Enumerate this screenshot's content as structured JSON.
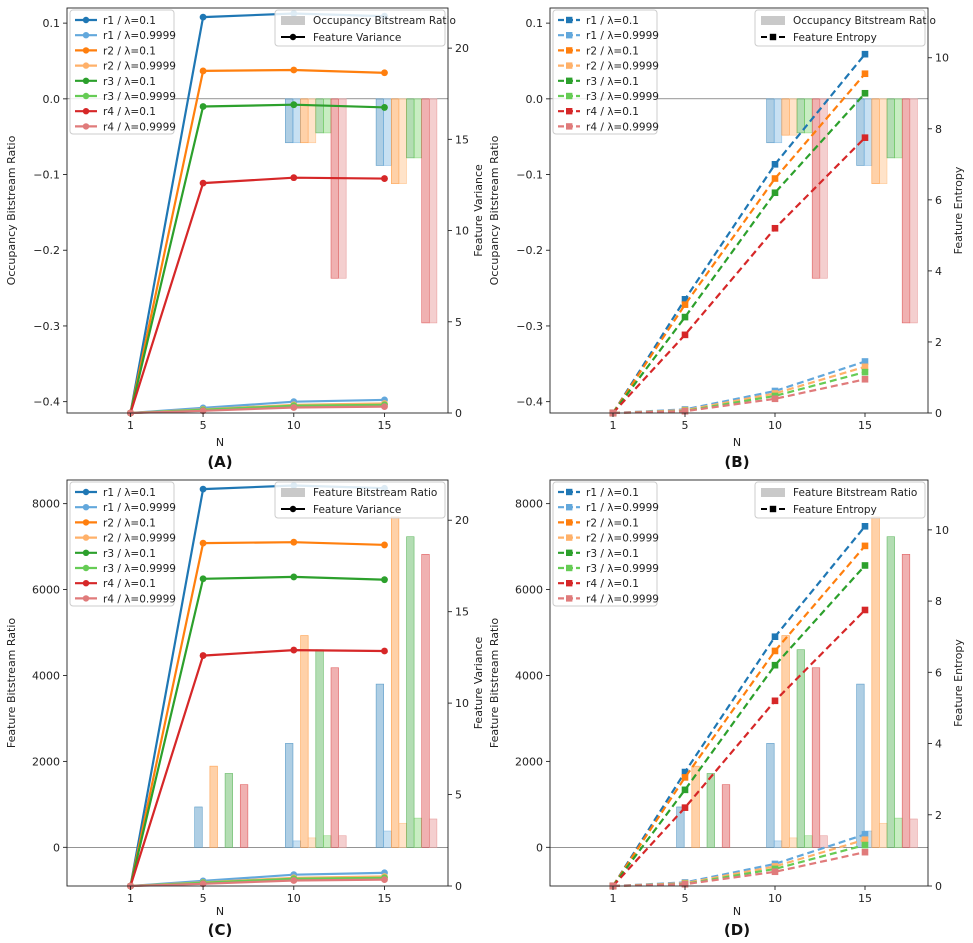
{
  "figure": {
    "n_label": "N",
    "legend_entries": [
      "r1 / λ=0.1",
      "r1 / λ=0.9999",
      "r2 / λ=0.1",
      "r2 / λ=0.9999",
      "r3 / λ=0.1",
      "r3 / λ=0.9999",
      "r4 / λ=0.1",
      "r4 / λ=0.9999"
    ],
    "colors": {
      "r1_0.1": "#1f77b4",
      "r1_0.9999": "#63a8dc",
      "r2_0.1": "#ff7f0e",
      "r2_0.9999": "#ffb16a",
      "r3_0.1": "#2ca02c",
      "r3_0.9999": "#66cc55",
      "r4_0.1": "#d62728",
      "r4_0.9999": "#e07b7b"
    }
  },
  "chart_data": [
    {
      "type": "bar+line",
      "panel_label": "(A)",
      "xlabel": "N",
      "ylabel": "Occupancy Bitstream Ratio",
      "y2label": "Feature Variance",
      "x_ticks": [
        "1",
        "5",
        "10",
        "15"
      ],
      "ylim": [
        -0.415,
        0.12
      ],
      "y_ticks": [
        "0.1",
        "0.0",
        "−0.1",
        "−0.2",
        "−0.3",
        "−0.4"
      ],
      "y2lim": [
        0,
        22.2
      ],
      "y2_ticks": [
        "0",
        "5",
        "10",
        "15",
        "20"
      ],
      "line_style": "solid",
      "bar_legend": "Occupancy Bitstream Ratio",
      "line_legend": "Feature Variance",
      "bars": [
        {
          "N": 10,
          "values": [
            -0.058,
            -0.058,
            -0.058,
            -0.058,
            -0.045,
            -0.045,
            -0.237,
            -0.237
          ]
        },
        {
          "N": 15,
          "values": [
            -0.088,
            -0.088,
            -0.112,
            -0.112,
            -0.078,
            -0.078,
            -0.296,
            -0.296
          ]
        }
      ],
      "series": [
        {
          "name": "r1 / λ=0.1",
          "x": [
            1,
            5,
            10,
            15
          ],
          "values": [
            0.0,
            21.7,
            21.9,
            21.75
          ]
        },
        {
          "name": "r1 / λ=0.9999",
          "x": [
            1,
            5,
            10,
            15
          ],
          "values": [
            0.0,
            0.28,
            0.62,
            0.72
          ]
        },
        {
          "name": "r2 / λ=0.1",
          "x": [
            1,
            5,
            10,
            15
          ],
          "values": [
            0.0,
            18.75,
            18.8,
            18.65
          ]
        },
        {
          "name": "r2 / λ=0.9999",
          "x": [
            1,
            5,
            10,
            15
          ],
          "values": [
            0.0,
            0.2,
            0.45,
            0.52
          ]
        },
        {
          "name": "r3 / λ=0.1",
          "x": [
            1,
            5,
            10,
            15
          ],
          "values": [
            0.0,
            16.8,
            16.9,
            16.75
          ]
        },
        {
          "name": "r3 / λ=0.9999",
          "x": [
            1,
            5,
            10,
            15
          ],
          "values": [
            0.0,
            0.18,
            0.4,
            0.45
          ]
        },
        {
          "name": "r4 / λ=0.1",
          "x": [
            1,
            5,
            10,
            15
          ],
          "values": [
            0.0,
            12.6,
            12.9,
            12.85
          ]
        },
        {
          "name": "r4 / λ=0.9999",
          "x": [
            1,
            5,
            10,
            15
          ],
          "values": [
            0.0,
            0.12,
            0.3,
            0.35
          ]
        }
      ]
    },
    {
      "type": "bar+line",
      "panel_label": "(B)",
      "xlabel": "N",
      "ylabel": "Occupancy Bitstream Ratio",
      "y2label": "Feature Entropy",
      "x_ticks": [
        "1",
        "5",
        "10",
        "15"
      ],
      "ylim": [
        -0.415,
        0.12
      ],
      "y_ticks": [
        "0.1",
        "0.0",
        "−0.1",
        "−0.2",
        "−0.3",
        "−0.4"
      ],
      "y2lim": [
        0,
        11.4
      ],
      "y2_ticks": [
        "0",
        "2",
        "4",
        "6",
        "8",
        "10"
      ],
      "line_style": "dashed",
      "bar_legend": "Occupancy Bitstream Ratio",
      "line_legend": "Feature Entropy",
      "bars": [
        {
          "N": 10,
          "values": [
            -0.058,
            -0.058,
            -0.048,
            -0.048,
            -0.045,
            -0.045,
            -0.237,
            -0.237
          ]
        },
        {
          "N": 15,
          "values": [
            -0.088,
            -0.088,
            -0.112,
            -0.112,
            -0.078,
            -0.078,
            -0.296,
            -0.296
          ]
        }
      ],
      "series": [
        {
          "name": "r1 / λ=0.1",
          "x": [
            1,
            5,
            10,
            15
          ],
          "values": [
            0.0,
            3.2,
            7.0,
            10.1
          ]
        },
        {
          "name": "r1 / λ=0.9999",
          "x": [
            1,
            5,
            10,
            15
          ],
          "values": [
            0.0,
            0.1,
            0.62,
            1.45
          ]
        },
        {
          "name": "r2 / λ=0.1",
          "x": [
            1,
            5,
            10,
            15
          ],
          "values": [
            0.0,
            3.05,
            6.6,
            9.55
          ]
        },
        {
          "name": "r2 / λ=0.9999",
          "x": [
            1,
            5,
            10,
            15
          ],
          "values": [
            0.0,
            0.08,
            0.55,
            1.3
          ]
        },
        {
          "name": "r3 / λ=0.1",
          "x": [
            1,
            5,
            10,
            15
          ],
          "values": [
            0.0,
            2.7,
            6.2,
            9.0
          ]
        },
        {
          "name": "r3 / λ=0.9999",
          "x": [
            1,
            5,
            10,
            15
          ],
          "values": [
            0.0,
            0.06,
            0.48,
            1.15
          ]
        },
        {
          "name": "r4 / λ=0.1",
          "x": [
            1,
            5,
            10,
            15
          ],
          "values": [
            0.0,
            2.2,
            5.2,
            7.75
          ]
        },
        {
          "name": "r4 / λ=0.9999",
          "x": [
            1,
            5,
            10,
            15
          ],
          "values": [
            0.0,
            0.05,
            0.4,
            0.95
          ]
        }
      ]
    },
    {
      "type": "bar+line",
      "panel_label": "(C)",
      "xlabel": "N",
      "ylabel": "Feature Bitstream Ratio",
      "y2label": "Feature Variance",
      "x_ticks": [
        "1",
        "5",
        "10",
        "15"
      ],
      "ylim": [
        -900,
        8550
      ],
      "y_ticks": [
        "8000",
        "6000",
        "4000",
        "2000",
        "0"
      ],
      "y2lim": [
        0,
        22.2
      ],
      "y2_ticks": [
        "0",
        "5",
        "10",
        "15",
        "20"
      ],
      "line_style": "solid",
      "bar_legend": "Feature Bitstream Ratio",
      "line_legend": "Feature Variance",
      "bars": [
        {
          "N": 5,
          "values": [
            940,
            0,
            1890,
            0,
            1720,
            0,
            1460,
            0
          ]
        },
        {
          "N": 10,
          "values": [
            2420,
            150,
            4930,
            220,
            4600,
            270,
            4180,
            270
          ]
        },
        {
          "N": 15,
          "values": [
            3800,
            380,
            7700,
            560,
            7230,
            680,
            6820,
            660
          ]
        }
      ],
      "series": [
        {
          "name": "r1 / λ=0.1",
          "x": [
            1,
            5,
            10,
            15
          ],
          "values": [
            0.0,
            21.7,
            21.9,
            21.75
          ]
        },
        {
          "name": "r1 / λ=0.9999",
          "x": [
            1,
            5,
            10,
            15
          ],
          "values": [
            0.0,
            0.28,
            0.62,
            0.72
          ]
        },
        {
          "name": "r2 / λ=0.1",
          "x": [
            1,
            5,
            10,
            15
          ],
          "values": [
            0.0,
            18.75,
            18.8,
            18.65
          ]
        },
        {
          "name": "r2 / λ=0.9999",
          "x": [
            1,
            5,
            10,
            15
          ],
          "values": [
            0.0,
            0.2,
            0.45,
            0.52
          ]
        },
        {
          "name": "r3 / λ=0.1",
          "x": [
            1,
            5,
            10,
            15
          ],
          "values": [
            0.0,
            16.8,
            16.9,
            16.75
          ]
        },
        {
          "name": "r3 / λ=0.9999",
          "x": [
            1,
            5,
            10,
            15
          ],
          "values": [
            0.0,
            0.18,
            0.4,
            0.45
          ]
        },
        {
          "name": "r4 / λ=0.1",
          "x": [
            1,
            5,
            10,
            15
          ],
          "values": [
            0.0,
            12.6,
            12.9,
            12.85
          ]
        },
        {
          "name": "r4 / λ=0.9999",
          "x": [
            1,
            5,
            10,
            15
          ],
          "values": [
            0.0,
            0.12,
            0.3,
            0.35
          ]
        }
      ]
    },
    {
      "type": "bar+line",
      "panel_label": "(D)",
      "xlabel": "N",
      "ylabel": "Feature Bitstream Ratio",
      "y2label": "Feature Entropy",
      "x_ticks": [
        "1",
        "5",
        "10",
        "15"
      ],
      "ylim": [
        -900,
        8550
      ],
      "y_ticks": [
        "8000",
        "6000",
        "4000",
        "2000",
        "0"
      ],
      "y2lim": [
        0,
        11.4
      ],
      "y2_ticks": [
        "0",
        "2",
        "4",
        "6",
        "8",
        "10"
      ],
      "line_style": "dashed",
      "bar_legend": "Feature Bitstream Ratio",
      "line_legend": "Feature Entropy",
      "bars": [
        {
          "N": 5,
          "values": [
            940,
            0,
            1890,
            0,
            1720,
            0,
            1460,
            0
          ]
        },
        {
          "N": 10,
          "values": [
            2420,
            150,
            4930,
            220,
            4600,
            270,
            4180,
            270
          ]
        },
        {
          "N": 15,
          "values": [
            3800,
            380,
            7700,
            560,
            7230,
            680,
            6820,
            660
          ]
        }
      ],
      "series": [
        {
          "name": "r1 / λ=0.1",
          "x": [
            1,
            5,
            10,
            15
          ],
          "values": [
            0.0,
            3.2,
            7.0,
            10.1
          ]
        },
        {
          "name": "r1 / λ=0.9999",
          "x": [
            1,
            5,
            10,
            15
          ],
          "values": [
            0.0,
            0.1,
            0.62,
            1.45
          ]
        },
        {
          "name": "r2 / λ=0.1",
          "x": [
            1,
            5,
            10,
            15
          ],
          "values": [
            0.0,
            3.05,
            6.6,
            9.55
          ]
        },
        {
          "name": "r2 / λ=0.9999",
          "x": [
            1,
            5,
            10,
            15
          ],
          "values": [
            0.0,
            0.08,
            0.55,
            1.3
          ]
        },
        {
          "name": "r3 / λ=0.1",
          "x": [
            1,
            5,
            10,
            15
          ],
          "values": [
            0.0,
            2.7,
            6.2,
            9.0
          ]
        },
        {
          "name": "r3 / λ=0.9999",
          "x": [
            1,
            5,
            10,
            15
          ],
          "values": [
            0.0,
            0.06,
            0.48,
            1.15
          ]
        },
        {
          "name": "r4 / λ=0.1",
          "x": [
            1,
            5,
            10,
            15
          ],
          "values": [
            0.0,
            2.2,
            5.2,
            7.75
          ]
        },
        {
          "name": "r4 / λ=0.9999",
          "x": [
            1,
            5,
            10,
            15
          ],
          "values": [
            0.0,
            0.05,
            0.4,
            0.95
          ]
        }
      ]
    }
  ]
}
